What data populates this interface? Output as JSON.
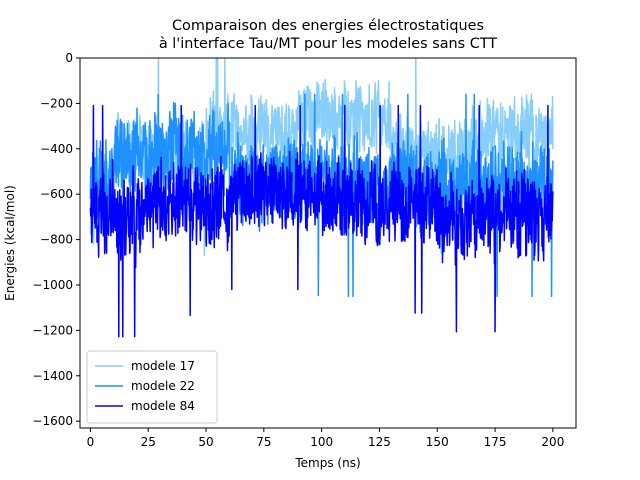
{
  "chart_data": {
    "type": "line",
    "title": [
      "Comparaison des energies électrostatiques",
      "à l'interface Tau/MT pour les modeles sans CTT"
    ],
    "xlabel": "Temps (ns)",
    "ylabel": "Energies (kcal/mol)",
    "xlim": [
      -4.5,
      210
    ],
    "ylim": [
      -1630,
      0
    ],
    "xticks": [
      0,
      25,
      50,
      75,
      100,
      125,
      150,
      175,
      200
    ],
    "yticks": [
      0,
      -200,
      -400,
      -600,
      -800,
      -1000,
      -1200,
      -1400,
      -1600
    ],
    "grid": false,
    "legend_position": "lower left",
    "x_range": [
      0,
      200
    ],
    "series": [
      {
        "name": "modele 17",
        "color": "#87cefa",
        "segments": [
          {
            "x_start": 0,
            "x_end": 10,
            "mean": -600,
            "spread": 220
          },
          {
            "x_start": 10,
            "x_end": 50,
            "mean": -430,
            "spread": 200
          },
          {
            "x_start": 50,
            "x_end": 90,
            "mean": -330,
            "spread": 190
          },
          {
            "x_start": 90,
            "x_end": 130,
            "mean": -260,
            "spread": 190
          },
          {
            "x_start": 130,
            "x_end": 165,
            "mean": -420,
            "spread": 200
          },
          {
            "x_start": 165,
            "x_end": 200,
            "mean": -330,
            "spread": 200
          }
        ],
        "min": -890,
        "max": 0
      },
      {
        "name": "modele 22",
        "color": "#1e90ff",
        "segments": [
          {
            "x_start": 0,
            "x_end": 10,
            "mean": -560,
            "spread": 240
          },
          {
            "x_start": 10,
            "x_end": 60,
            "mean": -420,
            "spread": 230
          },
          {
            "x_start": 60,
            "x_end": 100,
            "mean": -540,
            "spread": 230
          },
          {
            "x_start": 100,
            "x_end": 150,
            "mean": -560,
            "spread": 230
          },
          {
            "x_start": 150,
            "x_end": 200,
            "mean": -560,
            "spread": 240
          }
        ],
        "min": -1050,
        "max": -160
      },
      {
        "name": "modele 84",
        "color": "#0000ff",
        "segments": [
          {
            "x_start": 0,
            "x_end": 20,
            "mean": -700,
            "spread": 240
          },
          {
            "x_start": 20,
            "x_end": 60,
            "mean": -650,
            "spread": 220
          },
          {
            "x_start": 60,
            "x_end": 100,
            "mean": -580,
            "spread": 200
          },
          {
            "x_start": 100,
            "x_end": 150,
            "mean": -640,
            "spread": 220
          },
          {
            "x_start": 150,
            "x_end": 200,
            "mean": -700,
            "spread": 230
          }
        ],
        "min": -1230,
        "max": -210
      }
    ]
  }
}
